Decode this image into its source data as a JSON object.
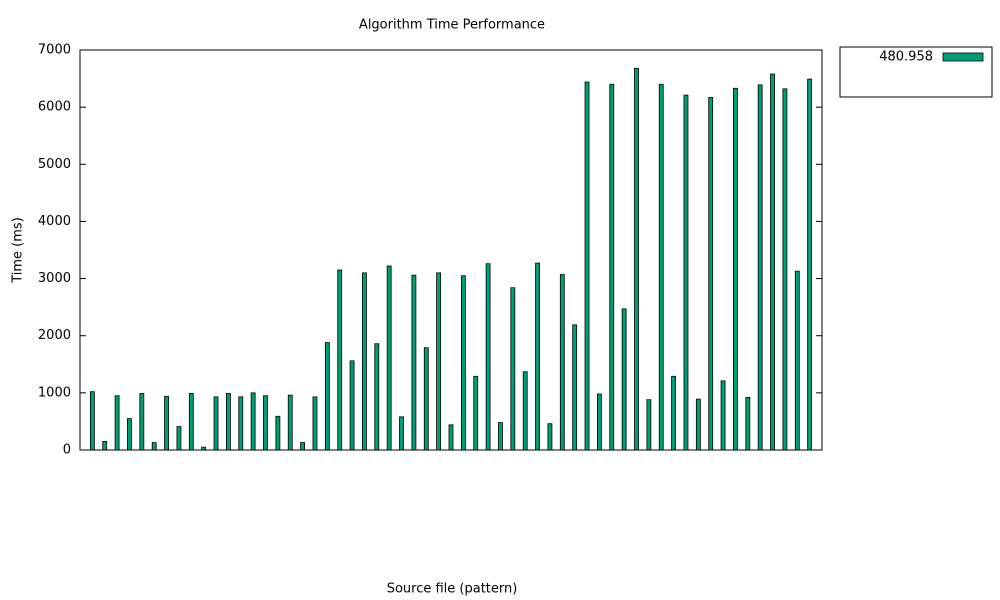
{
  "chart_data": {
    "type": "bar",
    "title": "Algorithm Time Performance",
    "xlabel": "Source file (pattern)",
    "ylabel": "Time (ms)",
    "categories": [
      null,
      null,
      null,
      null,
      null,
      null,
      null,
      null,
      null,
      null,
      null,
      null,
      null,
      null,
      null,
      null,
      null,
      null,
      null,
      null,
      null,
      null,
      null,
      null,
      null,
      null,
      null,
      null,
      null,
      null,
      null,
      null,
      null,
      null,
      null,
      null,
      null,
      null,
      null,
      null,
      null,
      null,
      null,
      null,
      null,
      null,
      null,
      null,
      null,
      null,
      null,
      null,
      null,
      null,
      null,
      null,
      null,
      null,
      null
    ],
    "series": [
      {
        "name": "480.958",
        "color": "#009e73",
        "values": [
          1020,
          150,
          950,
          550,
          990,
          130,
          940,
          410,
          990,
          50,
          930,
          990,
          930,
          1000,
          950,
          590,
          960,
          130,
          930,
          1880,
          3150,
          1560,
          3100,
          1860,
          3220,
          580,
          3060,
          1790,
          3100,
          440,
          3050,
          1290,
          3260,
          480,
          2840,
          1370,
          3270,
          460,
          3070,
          2190,
          6440,
          980,
          6400,
          2470,
          6680,
          880,
          6400,
          1290,
          6210,
          890,
          6170,
          1210,
          6330,
          920,
          6390,
          6580,
          6320,
          3130,
          6490
        ]
      }
    ],
    "xlim": [
      -1,
      59
    ],
    "ylim": [
      0,
      7000
    ],
    "yticks": [
      0,
      1000,
      2000,
      3000,
      4000,
      5000,
      6000,
      7000
    ],
    "legend": "outside-top-right"
  }
}
